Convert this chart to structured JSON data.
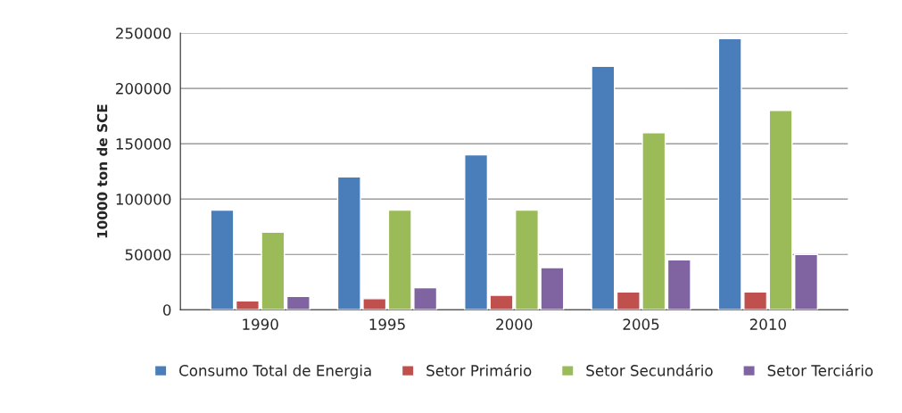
{
  "chart_data": {
    "type": "bar",
    "ylabel": "10000 ton de SCE",
    "categories": [
      "1990",
      "1995",
      "2000",
      "2005",
      "2010"
    ],
    "series": [
      {
        "name": "Consumo Total de Energia",
        "color": "#4a7ebb",
        "values": [
          90000,
          120000,
          140000,
          220000,
          245000
        ]
      },
      {
        "name": "Setor Primário",
        "color": "#c0504d",
        "values": [
          8000,
          10000,
          13000,
          16000,
          16000
        ]
      },
      {
        "name": "Setor Secundário",
        "color": "#9bbb59",
        "values": [
          70000,
          90000,
          90000,
          160000,
          180000
        ]
      },
      {
        "name": "Setor Terciário",
        "color": "#8064a2",
        "values": [
          12000,
          20000,
          38000,
          45000,
          50000
        ]
      }
    ],
    "ylim": [
      0,
      250000
    ],
    "yticks": [
      0,
      50000,
      100000,
      150000,
      200000,
      250000
    ],
    "grid": "y",
    "legend": "bottom"
  }
}
